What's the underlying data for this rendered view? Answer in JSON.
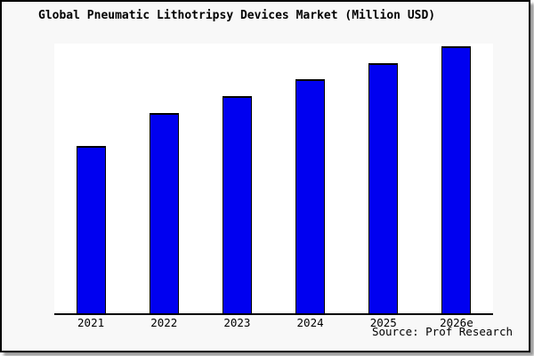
{
  "window": {
    "background_color": "#f8f8f8",
    "plot_background_color": "#ffffff",
    "frame_border_color": "#000000",
    "shadow_color": "#9a9a9a"
  },
  "chart": {
    "title": "Global Pneumatic Lithotripsy Devices Market (Million USD)",
    "source": "Source: Prof Research",
    "bar_color": "#0000f0",
    "bar_border_color": "#000000",
    "axis_color": "#000000"
  },
  "chart_data": {
    "type": "bar",
    "title": "Global Pneumatic Lithotripsy Devices Market (Million USD)",
    "categories": [
      "2021",
      "2022",
      "2023",
      "2024",
      "2025",
      "2026e"
    ],
    "values_pct_of_max": [
      62.7,
      75.0,
      81.3,
      87.7,
      93.7,
      100
    ],
    "value_labels_visible": false,
    "y_axis": "unlabeled (no ticks or gridlines shown)",
    "xlabel": "",
    "ylabel": "",
    "grid": false,
    "legend": false,
    "series_color": "#0000f0",
    "source": "Source: Prof Research"
  }
}
